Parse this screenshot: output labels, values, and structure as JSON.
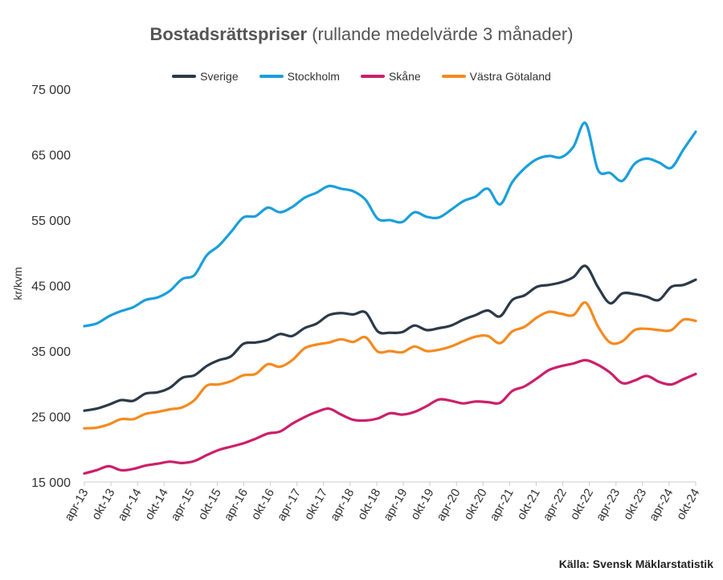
{
  "chart_data": {
    "type": "line",
    "title": "Bostadsrättspriser",
    "subtitle": "(rullande medelvärde 3 månader)",
    "ylabel": "kr/kvm",
    "ylim": [
      15000,
      75000
    ],
    "yticks": [
      15000,
      25000,
      35000,
      45000,
      55000,
      65000,
      75000
    ],
    "ytick_labels": [
      "15 000",
      "25 000",
      "35 000",
      "45 000",
      "55 000",
      "65 000",
      "75 000"
    ],
    "xtick_labels": [
      "apr-13",
      "okt-13",
      "apr-14",
      "okt-14",
      "apr-15",
      "okt-15",
      "apr-16",
      "okt-16",
      "apr-17",
      "okt-17",
      "apr-18",
      "okt-18",
      "apr-19",
      "okt-19",
      "apr-20",
      "okt-20",
      "apr-21",
      "okt-21",
      "apr-22",
      "okt-22",
      "apr-23",
      "okt-23",
      "apr-24",
      "okt-24"
    ],
    "legend_position": "top",
    "grid": false,
    "source": "Källa: Svensk Mäklarstatistik",
    "series": [
      {
        "name": "Sverige",
        "color": "#2b3a4a",
        "values": [
          25900,
          26200,
          26800,
          27500,
          27400,
          28500,
          28700,
          29400,
          30900,
          31300,
          32700,
          33600,
          34200,
          36100,
          36300,
          36700,
          37600,
          37300,
          38500,
          39200,
          40500,
          40800,
          40600,
          40900,
          38000,
          37800,
          37900,
          38900,
          38200,
          38500,
          38900,
          39800,
          40500,
          41200,
          40300,
          42800,
          43500,
          44800,
          45100,
          45500,
          46300,
          48000,
          44800,
          42300,
          43800,
          43700,
          43300,
          42800,
          44800,
          45100,
          45900
        ]
      },
      {
        "name": "Stockholm",
        "color": "#1a9fdb",
        "values": [
          38800,
          39200,
          40300,
          41100,
          41700,
          42800,
          43200,
          44200,
          46000,
          46600,
          49600,
          51100,
          53200,
          55400,
          55600,
          56900,
          56200,
          57000,
          58400,
          59200,
          60200,
          59800,
          59400,
          58100,
          55200,
          55000,
          54700,
          56200,
          55500,
          55400,
          56600,
          57900,
          58600,
          59800,
          57400,
          60800,
          62900,
          64300,
          64800,
          64600,
          66200,
          69800,
          62700,
          62200,
          61000,
          63600,
          64400,
          63800,
          63000,
          65800,
          68500
        ]
      },
      {
        "name": "Skåne",
        "color": "#cc1f6a",
        "values": [
          16300,
          16800,
          17400,
          16800,
          17000,
          17500,
          17800,
          18100,
          17900,
          18200,
          19100,
          19900,
          20400,
          20900,
          21600,
          22400,
          22700,
          23900,
          24900,
          25700,
          26200,
          25300,
          24500,
          24400,
          24700,
          25500,
          25300,
          25700,
          26600,
          27600,
          27400,
          27000,
          27300,
          27200,
          27100,
          28900,
          29600,
          30800,
          32100,
          32700,
          33100,
          33600,
          32900,
          31700,
          30100,
          30500,
          31200,
          30300,
          29900,
          30700,
          31500
        ]
      },
      {
        "name": "Västra Götaland",
        "color": "#f58a1f",
        "values": [
          23200,
          23300,
          23800,
          24600,
          24600,
          25400,
          25700,
          26100,
          26400,
          27500,
          29700,
          29900,
          30400,
          31300,
          31500,
          33000,
          32600,
          33600,
          35400,
          36000,
          36300,
          36800,
          36400,
          37100,
          34900,
          35000,
          34800,
          35700,
          35000,
          35200,
          35700,
          36500,
          37200,
          37300,
          36200,
          38000,
          38700,
          40100,
          41000,
          40700,
          40500,
          42400,
          38800,
          36300,
          36500,
          38200,
          38400,
          38200,
          38200,
          39800,
          39600
        ]
      }
    ]
  }
}
